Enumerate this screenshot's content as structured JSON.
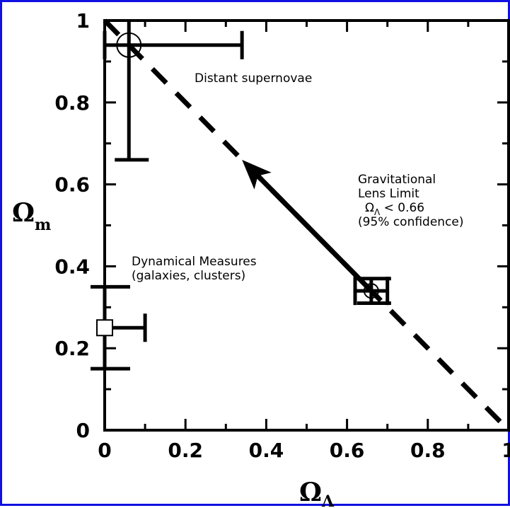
{
  "chart_data": {
    "type": "scatter",
    "title": "",
    "xlabel": {
      "main": "Ω",
      "sub": "Λ"
    },
    "ylabel": {
      "main": "Ω",
      "sub": "m"
    },
    "xlim": [
      0,
      1
    ],
    "ylim": [
      0,
      1
    ],
    "x_ticks": [
      "0",
      "0.2",
      "0.4",
      "0.6",
      "0.8",
      "1"
    ],
    "y_ticks": [
      "0",
      "0.2",
      "0.4",
      "0.6",
      "0.8",
      "1"
    ],
    "grid": false,
    "flat_universe_line": {
      "style": "dashed",
      "points": [
        [
          0,
          1
        ],
        [
          1,
          0
        ]
      ]
    },
    "points": [
      {
        "name": "distant-supernovae",
        "marker": "circle",
        "x": 0.06,
        "y": 0.94,
        "xerr_low": 0.0,
        "xerr_high": 0.34,
        "yerr_low": 0.66,
        "yerr_high": 1.0,
        "label_lines": [
          "Distant supernovae"
        ]
      },
      {
        "name": "dynamical-measures",
        "marker": "square",
        "x": 0.0,
        "y": 0.25,
        "xerr_low": 0.0,
        "xerr_high": 0.1,
        "yerr_low": 0.15,
        "yerr_high": 0.35,
        "label_lines": [
          "Dynamical Measures",
          "(galaxies, clusters)"
        ]
      },
      {
        "name": "gravitational-lens",
        "marker": "circle",
        "x": 0.66,
        "y": 0.34,
        "xerr_low": 0.62,
        "xerr_high": 0.7,
        "yerr_low": 0.31,
        "yerr_high": 0.37,
        "label_lines": [
          "Gravitational",
          "Lens Limit",
          "Ω_Λ < 0.66",
          "(95% confidence)"
        ]
      }
    ],
    "arrow": {
      "from": [
        0.66,
        0.34
      ],
      "to": [
        0.34,
        0.66
      ]
    }
  }
}
